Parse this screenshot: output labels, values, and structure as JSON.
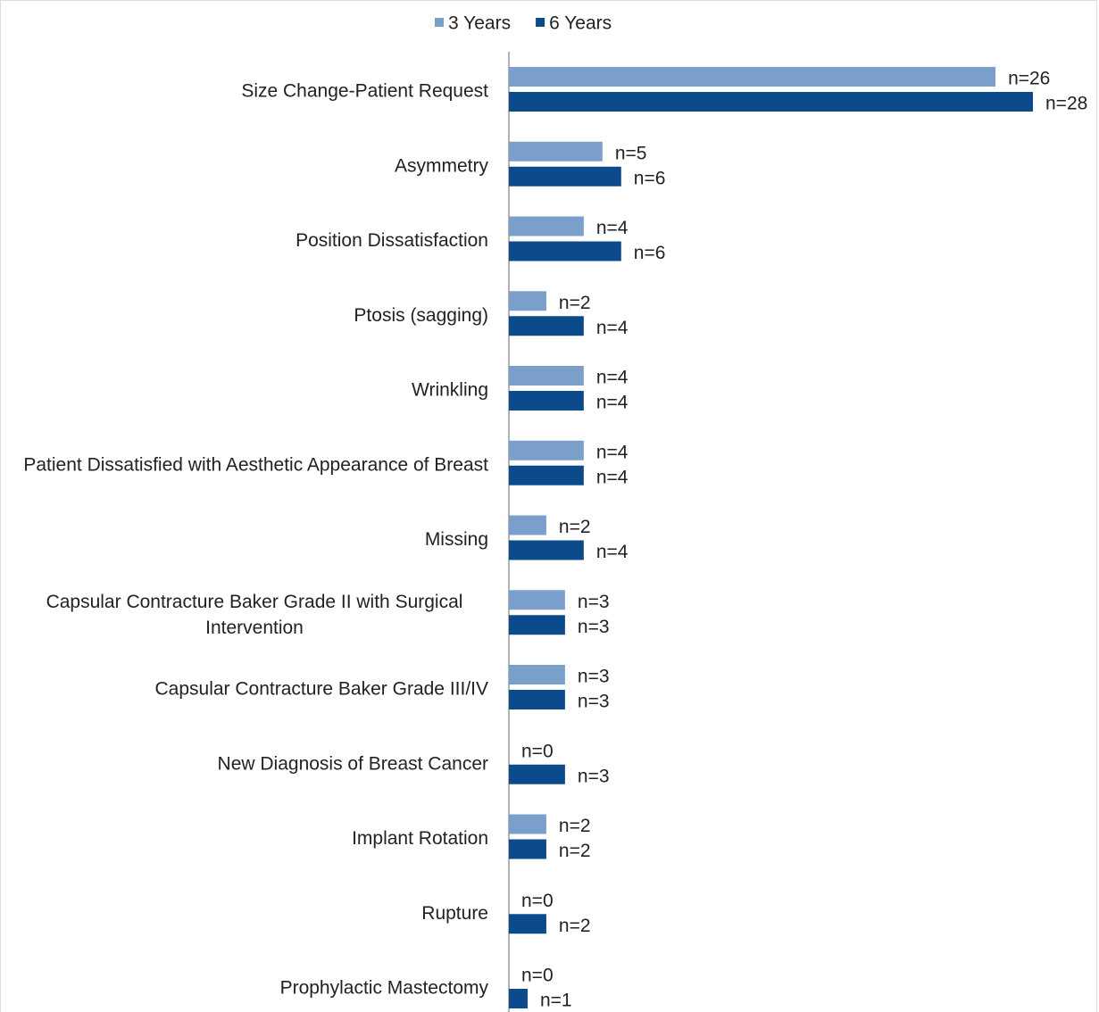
{
  "chart_data": {
    "type": "hbar",
    "categories": [
      "Size Change-Patient Request",
      "Asymmetry",
      "Position Dissatisfaction",
      "Ptosis (sagging)",
      "Wrinkling",
      "Patient Dissatisfied with Aesthetic Appearance of Breast",
      "Missing",
      "Capsular Contracture Baker Grade II with Surgical Intervention",
      "Capsular Contracture Baker Grade III/IV",
      "New Diagnosis of Breast Cancer",
      "Implant Rotation",
      "Rupture",
      "Prophylactic Mastectomy"
    ],
    "series": [
      {
        "name": "3 Years",
        "color": "#7a9fcb",
        "values": [
          26,
          5,
          4,
          2,
          4,
          4,
          2,
          3,
          3,
          0,
          2,
          0,
          0
        ],
        "value_labels": [
          "n=26",
          "n=5",
          "n=4",
          "n=2",
          "n=4",
          "n=4",
          "n=2",
          "n=3",
          "n=3",
          "n=0",
          "n=2",
          "n=0",
          "n=0"
        ]
      },
      {
        "name": "6 Years",
        "color": "#0b4b8b",
        "values": [
          28,
          6,
          6,
          4,
          4,
          4,
          4,
          3,
          3,
          3,
          2,
          2,
          1
        ],
        "value_labels": [
          "n=28",
          "n=6",
          "n=6",
          "n=4",
          "n=4",
          "n=4",
          "n=4",
          "n=3",
          "n=3",
          "n=3",
          "n=2",
          "n=2",
          "n=1"
        ]
      }
    ],
    "xlim": [
      0,
      30
    ],
    "legend": "top"
  }
}
